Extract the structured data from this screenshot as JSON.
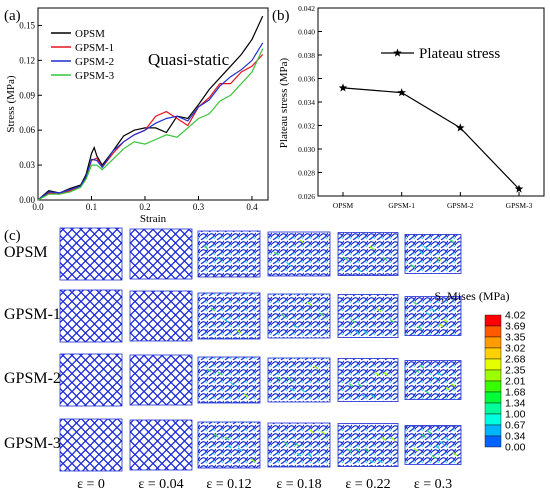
{
  "figure": {
    "panel_labels": [
      "(a)",
      "(b)",
      "(c)"
    ]
  },
  "chart_data": [
    {
      "type": "line",
      "panel": "(a)",
      "annotation": "Quasi-static",
      "xlabel": "Strain",
      "ylabel": "Stress (MPa)",
      "xlim": [
        0.0,
        0.43
      ],
      "ylim": [
        0.0,
        0.165
      ],
      "xticks": [
        0.0,
        0.1,
        0.2,
        0.3,
        0.4
      ],
      "xtick_labels": [
        "0.0",
        "0.1",
        "0.2",
        "0.3",
        "0.4"
      ],
      "yticks": [
        0.0,
        0.03,
        0.06,
        0.09,
        0.12,
        0.15
      ],
      "ytick_labels": [
        "0.00",
        "0.03",
        "0.06",
        "0.09",
        "0.12",
        "0.15"
      ],
      "legend_position": "top-left",
      "series": [
        {
          "name": "OPSM",
          "color": "#000000",
          "x": [
            0,
            0.02,
            0.04,
            0.06,
            0.08,
            0.09,
            0.1,
            0.105,
            0.11,
            0.12,
            0.14,
            0.16,
            0.18,
            0.2,
            0.22,
            0.24,
            0.26,
            0.28,
            0.3,
            0.32,
            0.34,
            0.36,
            0.38,
            0.4,
            0.42
          ],
          "y": [
            0.0,
            0.008,
            0.006,
            0.01,
            0.013,
            0.022,
            0.04,
            0.045,
            0.038,
            0.03,
            0.042,
            0.055,
            0.06,
            0.062,
            0.062,
            0.058,
            0.072,
            0.07,
            0.082,
            0.095,
            0.105,
            0.115,
            0.125,
            0.138,
            0.158
          ]
        },
        {
          "name": "GPSM-1",
          "color": "#e8141c",
          "x": [
            0,
            0.02,
            0.04,
            0.06,
            0.08,
            0.09,
            0.1,
            0.11,
            0.12,
            0.14,
            0.16,
            0.18,
            0.2,
            0.22,
            0.24,
            0.26,
            0.28,
            0.3,
            0.32,
            0.34,
            0.36,
            0.38,
            0.4,
            0.42
          ],
          "y": [
            0.0,
            0.006,
            0.005,
            0.008,
            0.012,
            0.02,
            0.034,
            0.036,
            0.028,
            0.04,
            0.05,
            0.056,
            0.06,
            0.072,
            0.076,
            0.07,
            0.064,
            0.08,
            0.088,
            0.1,
            0.1,
            0.11,
            0.115,
            0.125
          ]
        },
        {
          "name": "GPSM-2",
          "color": "#1f2fd1",
          "x": [
            0,
            0.02,
            0.04,
            0.06,
            0.08,
            0.09,
            0.1,
            0.11,
            0.12,
            0.14,
            0.16,
            0.18,
            0.2,
            0.22,
            0.24,
            0.26,
            0.28,
            0.3,
            0.32,
            0.34,
            0.36,
            0.38,
            0.4,
            0.42
          ],
          "y": [
            0.0,
            0.007,
            0.006,
            0.009,
            0.012,
            0.02,
            0.035,
            0.034,
            0.028,
            0.042,
            0.05,
            0.056,
            0.06,
            0.066,
            0.07,
            0.072,
            0.068,
            0.08,
            0.086,
            0.098,
            0.106,
            0.112,
            0.12,
            0.135
          ]
        },
        {
          "name": "GPSM-3",
          "color": "#39c43a",
          "x": [
            0,
            0.02,
            0.04,
            0.06,
            0.08,
            0.09,
            0.1,
            0.11,
            0.12,
            0.14,
            0.16,
            0.18,
            0.2,
            0.22,
            0.24,
            0.26,
            0.28,
            0.3,
            0.32,
            0.34,
            0.36,
            0.38,
            0.4,
            0.42
          ],
          "y": [
            0.0,
            0.005,
            0.005,
            0.007,
            0.011,
            0.018,
            0.03,
            0.03,
            0.026,
            0.035,
            0.044,
            0.05,
            0.048,
            0.052,
            0.056,
            0.054,
            0.062,
            0.07,
            0.074,
            0.085,
            0.09,
            0.1,
            0.11,
            0.13
          ]
        }
      ]
    },
    {
      "type": "line",
      "panel": "(b)",
      "xlabel": "",
      "ylabel": "Plateau stress (MPa)",
      "categories": [
        "OPSM",
        "GPSM-1",
        "GPSM-2",
        "GPSM-3"
      ],
      "ylim": [
        0.026,
        0.042
      ],
      "yticks": [
        0.026,
        0.028,
        0.03,
        0.032,
        0.034,
        0.036,
        0.038,
        0.04,
        0.042
      ],
      "ytick_labels": [
        "0.026",
        "0.028",
        "0.030",
        "0.032",
        "0.034",
        "0.036",
        "0.038",
        "0.040",
        "0.042"
      ],
      "legend_position": "top-right",
      "series": [
        {
          "name": "Plateau stress",
          "color": "#000000",
          "marker": "star",
          "values": [
            0.0352,
            0.0348,
            0.0318,
            0.0266
          ]
        }
      ]
    },
    {
      "type": "heatmap",
      "panel": "(c)",
      "row_labels": [
        "OPSM",
        "GPSM-1",
        "GPSM-2",
        "GPSM-3"
      ],
      "column_labels": [
        "ε = 0",
        "ε = 0.04",
        "ε = 0.12",
        "ε = 0.18",
        "ε = 0.22",
        "ε = 0.3"
      ],
      "strain_values": [
        0,
        0.04,
        0.12,
        0.18,
        0.22,
        0.3
      ],
      "colorbar": {
        "title": "S, Mises (MPa)",
        "tick_labels": [
          "4.02",
          "3.69",
          "3.35",
          "3.02",
          "2.68",
          "2.35",
          "2.01",
          "1.68",
          "1.34",
          "1.00",
          "0.67",
          "0.34",
          "0.00"
        ],
        "colors": [
          "#ff0000",
          "#ff5a00",
          "#ff9c00",
          "#ffd100",
          "#e3ff00",
          "#9cff00",
          "#38ff00",
          "#00ff39",
          "#00ff9c",
          "#00ffe0",
          "#00b5ff",
          "#0063ff",
          "#0000ff"
        ]
      }
    }
  ]
}
